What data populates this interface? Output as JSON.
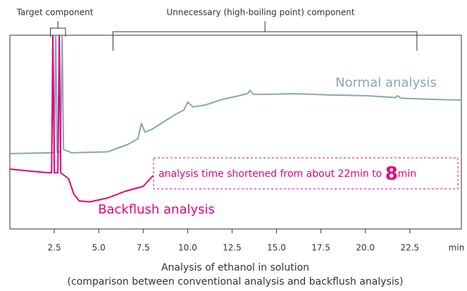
{
  "chart_data": {
    "type": "line",
    "caption": [
      "Analysis of ethanol in solution",
      "(comparison between conventional analysis and backflush analysis)"
    ],
    "x_unit": "min",
    "xlim": [
      0,
      25.4
    ],
    "ylim": [
      0,
      100
    ],
    "xticks": [
      {
        "value": 2.5,
        "label": "2.5"
      },
      {
        "value": 5,
        "label": "5.0"
      },
      {
        "value": 7.5,
        "label": "7.5"
      },
      {
        "value": 10,
        "label": "10.0"
      },
      {
        "value": 12.5,
        "label": "12.5"
      },
      {
        "value": 15,
        "label": "15.0"
      },
      {
        "value": 17.5,
        "label": "17.5"
      },
      {
        "value": 20,
        "label": "20.0"
      },
      {
        "value": 22.5,
        "label": "22.5"
      }
    ],
    "series": [
      {
        "name": "Normal analysis",
        "color": "#86a6b8",
        "x": [
          0,
          2.3,
          2.5,
          2.58,
          2.66,
          2.86,
          2.94,
          3.02,
          3.5,
          4.5,
          5.5,
          6,
          6.6,
          7.2,
          7.4,
          7.6,
          8,
          8.6,
          9.2,
          9.8,
          10,
          10.3,
          11,
          12,
          13,
          13.4,
          13.5,
          13.7,
          14.5,
          16,
          18,
          20,
          21.7,
          21.8,
          22,
          23.5,
          25.4
        ],
        "values": [
          38.9,
          39.3,
          39.5,
          100,
          39.5,
          40,
          100,
          41,
          39.3,
          39.6,
          39.8,
          41.5,
          43.5,
          46.5,
          54.5,
          50,
          51.5,
          55,
          58.5,
          61.5,
          65.5,
          63,
          64,
          67,
          69,
          70,
          71.6,
          69.5,
          69.5,
          69.8,
          69.2,
          68.8,
          67.8,
          68.8,
          67.5,
          67,
          66.5
        ]
      },
      {
        "name": "Backflush analysis",
        "color": "#e4007f",
        "x": [
          0,
          1,
          2.2,
          2.35,
          2.42,
          2.5,
          2.7,
          2.78,
          2.86,
          3.3,
          3.6,
          3.9,
          4.5,
          5.5,
          6.5,
          7.5,
          8.05
        ],
        "values": [
          30.9,
          30,
          29,
          29,
          100,
          29,
          29,
          100,
          29,
          26,
          18,
          14.5,
          14,
          16,
          19.5,
          22,
          27.5
        ]
      }
    ],
    "annotations": [
      {
        "text": "Target component",
        "x": [
          2.28,
          3.13
        ]
      },
      {
        "text": "Unnecessary (high-boiling point) component",
        "x": [
          5.8,
          22.9
        ]
      }
    ],
    "note": {
      "prefix": "analysis time shortened from about 22min to",
      "emphasis": "8",
      "suffix": "min"
    }
  }
}
